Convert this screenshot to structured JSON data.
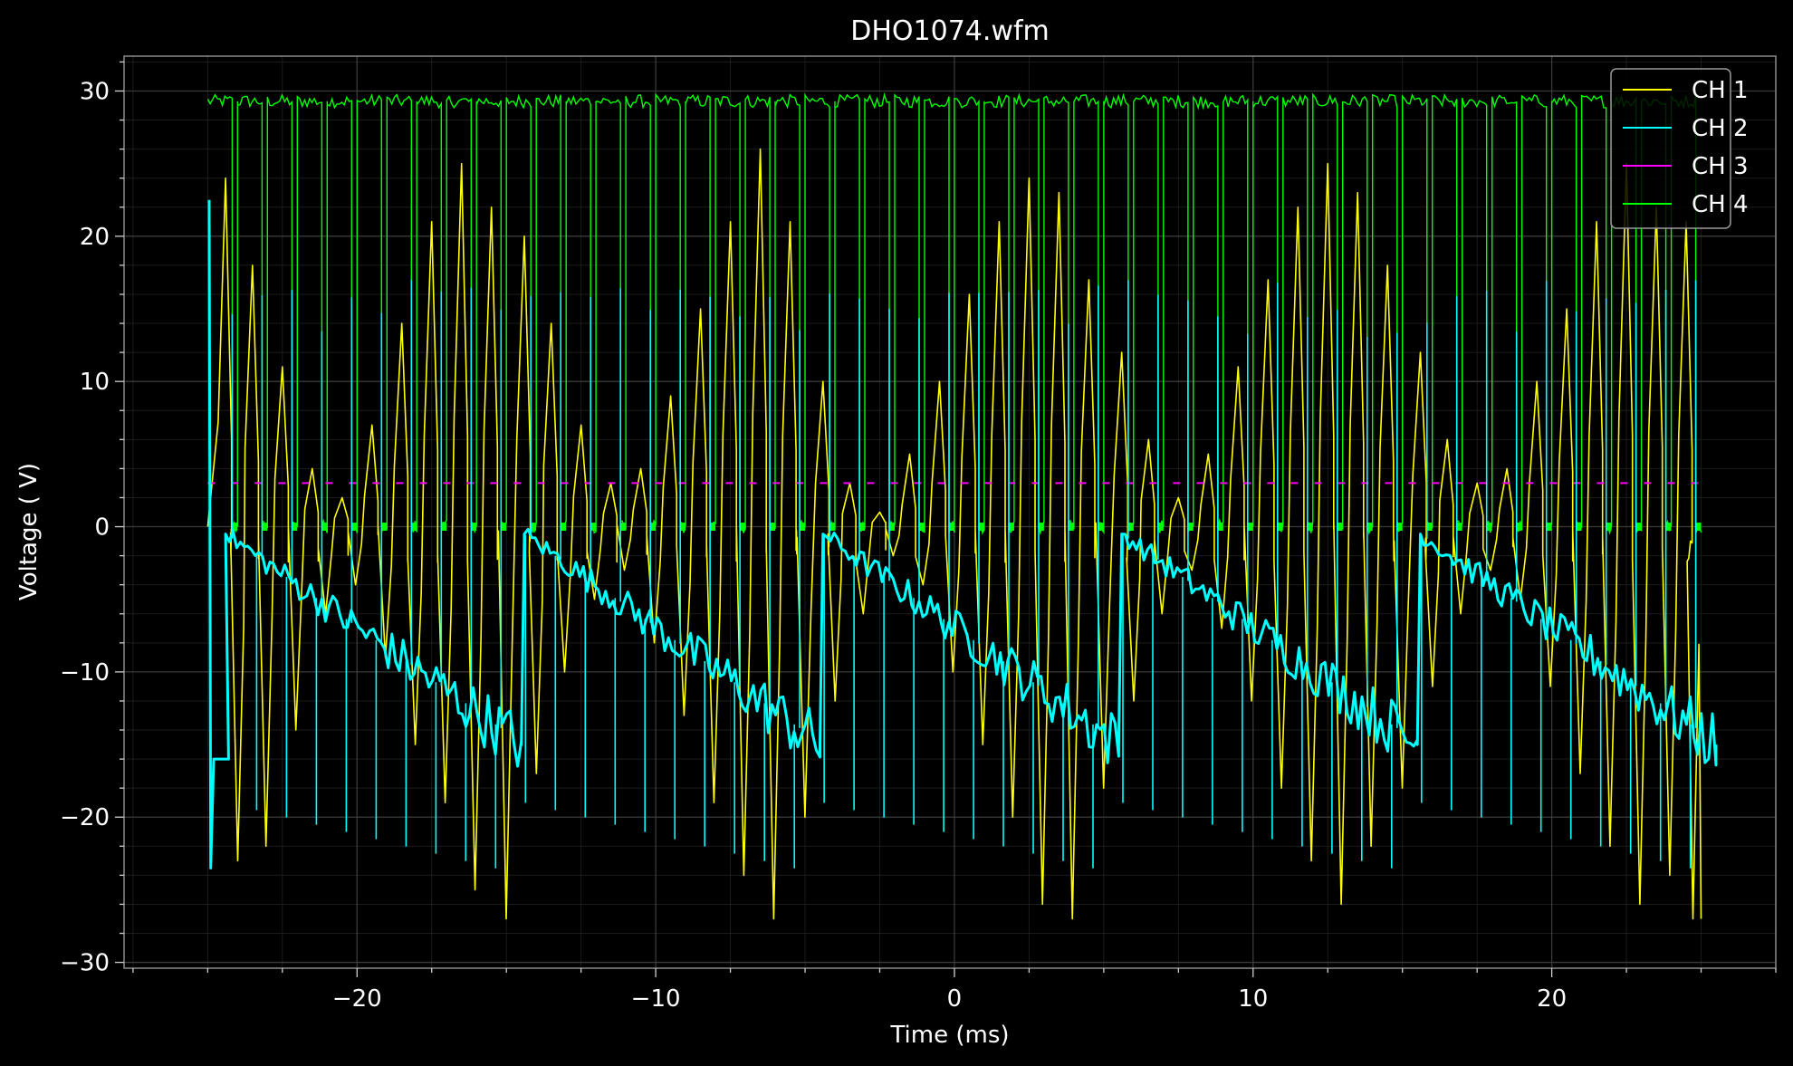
{
  "chart_data": {
    "type": "line",
    "title": "DHO1074.wfm",
    "xlabel": "Time (ms)",
    "ylabel": "Voltage ( V)",
    "xlim": [
      -27.8,
      27.5
    ],
    "ylim": [
      -30.4,
      32.4
    ],
    "x_ticks": [
      -20,
      -10,
      0,
      10,
      20
    ],
    "x_tick_labels": [
      "−20",
      "−10",
      "0",
      "10",
      "20"
    ],
    "y_ticks": [
      30,
      20,
      10,
      0,
      -10,
      -20,
      -30
    ],
    "y_tick_labels": [
      "30",
      "20",
      "10",
      "0",
      "−10",
      "−20",
      "−30"
    ],
    "grid": true,
    "legend_position": "top-right",
    "background": "#000000",
    "series": [
      {
        "name": "CH 1",
        "color": "#ffff00",
        "x_range": [
          -25,
          25
        ],
        "description_points": {
          "peak_times": [
            -24.4,
            -23.5,
            -22.5,
            -21.5,
            -20.5,
            -19.5,
            -18.5,
            -17.5,
            -16.5,
            -15.5,
            -14.4,
            -13.5,
            -12.5,
            -11.5,
            -10.5,
            -9.5,
            -8.5,
            -7.5,
            -6.5,
            -5.5,
            -4.4,
            -3.5,
            -2.5,
            -1.5,
            -0.5,
            0.5,
            1.5,
            2.5,
            3.5,
            4.5,
            5.6,
            6.5,
            7.5,
            8.5,
            9.5,
            10.5,
            11.5,
            12.5,
            13.5,
            14.5,
            15.6,
            16.5,
            17.5,
            18.5,
            19.5,
            20.5,
            21.5,
            22.5,
            23.5,
            24.5
          ],
          "peak_values": [
            24,
            18,
            11,
            4,
            2,
            7,
            14,
            21,
            25,
            22,
            20,
            14,
            7,
            3,
            4,
            9,
            15,
            21,
            26,
            21,
            10,
            3,
            1,
            5,
            10,
            16,
            21,
            24,
            23,
            17,
            12,
            6,
            2,
            5,
            11,
            17,
            22,
            25,
            23,
            18,
            12,
            6,
            3,
            4,
            10,
            15,
            21,
            25,
            22,
            21
          ],
          "trough_values": [
            -23,
            -22,
            -14,
            -6,
            -4,
            -9,
            -15,
            -19,
            -25,
            -27,
            -17,
            -10,
            -5,
            -3,
            -8,
            -13,
            -19,
            -24,
            -27,
            -20,
            -12,
            -6,
            -2,
            -4,
            -10,
            -15,
            -20,
            -26,
            -27,
            -18,
            -12,
            -6,
            -3,
            -7,
            -12,
            -18,
            -23,
            -26,
            -22,
            -18,
            -11,
            -6,
            -3,
            -5,
            -11,
            -17,
            -22,
            -26,
            -24,
            -27
          ]
        }
      },
      {
        "name": "CH 2",
        "color": "#00ffff",
        "x_range": [
          -25,
          25
        ],
        "period_ms": 10,
        "ramp_start": -0.5,
        "ramp_end": -15,
        "spike_high": 15,
        "spike_low": -17
      },
      {
        "name": "CH 3",
        "color": "#ff00ff",
        "x_range": [
          -25,
          25
        ],
        "level": 3,
        "dashed": true
      },
      {
        "name": "CH 4",
        "color": "#00ff00",
        "x_range": [
          -25,
          25
        ],
        "high": 29.3,
        "low": 0,
        "period_ms": 1,
        "duty_high": 0.82
      }
    ]
  }
}
